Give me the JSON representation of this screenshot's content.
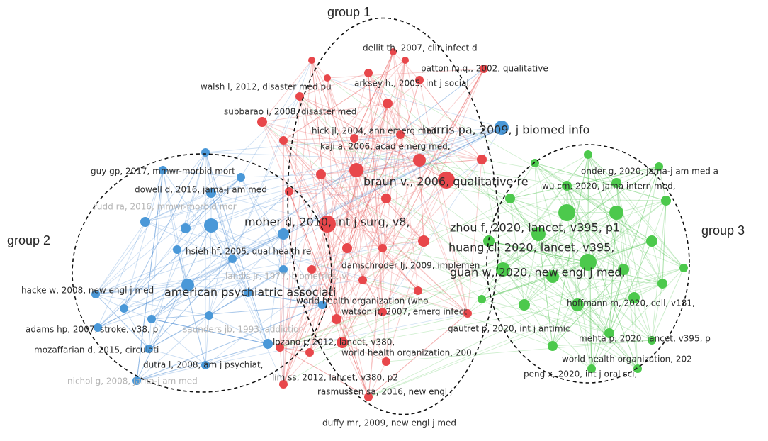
{
  "group_labels": [
    "group 1",
    "group 2",
    "group 3"
  ],
  "nodes": [
    {
      "label": "dellit th, 2007, clin infect d"
    },
    {
      "label": "patton m.q., 2002, qualitative"
    },
    {
      "label": "arksey h., 2005, int j social"
    },
    {
      "label": "walsh l, 2012, disaster med pu"
    },
    {
      "label": "subbarao i, 2008, disaster med"
    },
    {
      "label": "hick jl, 2004, ann emerg med"
    },
    {
      "label": "harris pa, 2009, j biomed info"
    },
    {
      "label": "kaji a, 2006, acad emerg med,"
    },
    {
      "label": "braun v., 2006, qualitative re"
    },
    {
      "label": "moher d, 2010, int j surg, v8,"
    },
    {
      "label": "damschroder lj, 2009, implemen"
    },
    {
      "label": "world health organization (who"
    },
    {
      "label": "watson jt, 2007, emerg infect"
    },
    {
      "label": "lozano r, 2012, lancet, v380,"
    },
    {
      "label": "world health organization, 200"
    },
    {
      "label": "gautret p, 2020, int j antimic"
    },
    {
      "label": "lim ss, 2012, lancet, v380, p2"
    },
    {
      "label": "rasmussen sa, 2016, new engl j"
    },
    {
      "label": "duffy mr, 2009, new engl j med"
    },
    {
      "label": "guy gp, 2017, mmwr-morbid mort"
    },
    {
      "label": "dowell d, 2016, jama-j am med"
    },
    {
      "label": "rudd ra, 2016, mmwr-morbid mor"
    },
    {
      "label": "hsieh hf, 2005, qual health re"
    },
    {
      "label": "landis jr, 1977, biometrics, v"
    },
    {
      "label": "hacke w, 2008, new engl j med"
    },
    {
      "label": "american psychiatric associati"
    },
    {
      "label": "adams hp, 2007, stroke, v38, p"
    },
    {
      "label": "saunders jb, 1993, addiction,"
    },
    {
      "label": "mozaffarian d, 2015, circulati"
    },
    {
      "label": "dutra l, 2008, am j psychiat,"
    },
    {
      "label": "nichol g, 2008, jama-j am med"
    },
    {
      "label": "onder g, 2020, jama-j am med a"
    },
    {
      "label": "wu cm, 2020, jama intern med,"
    },
    {
      "label": "zhou f, 2020, lancet, v395, p1"
    },
    {
      "label": "huang cl, 2020, lancet, v395,"
    },
    {
      "label": "guan w, 2020, new engl j med,"
    },
    {
      "label": "hoffmann m, 2020, cell, v181,"
    },
    {
      "label": "mehta p, 2020, lancet, v395, p"
    },
    {
      "label": "world health organization, 202"
    },
    {
      "label": "peng x, 2020, int j oral sci,"
    }
  ]
}
